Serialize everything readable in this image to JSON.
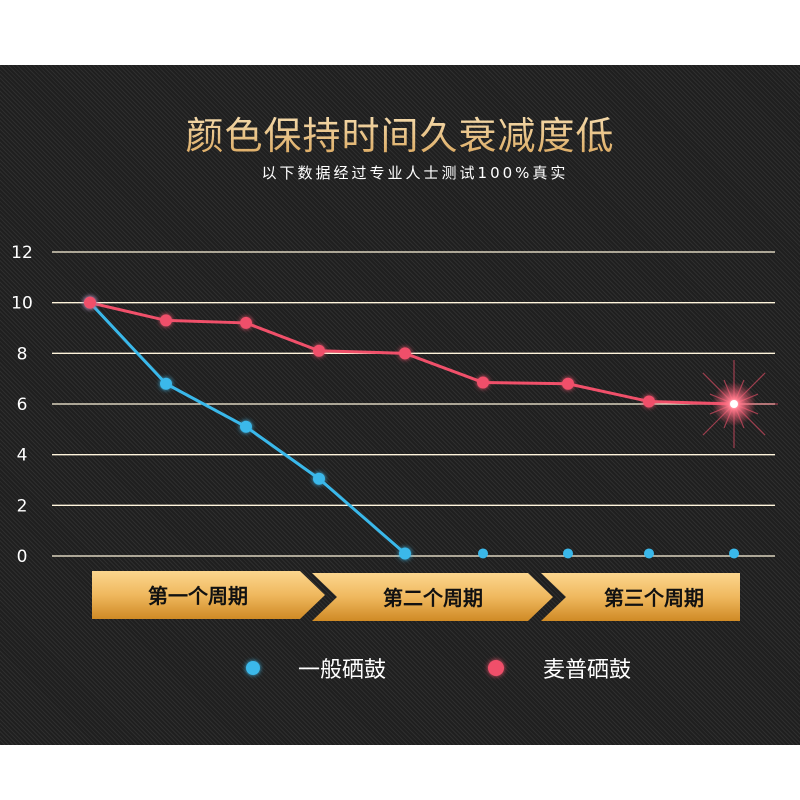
{
  "header": {
    "title": "颜色保持时间久衰减度低",
    "subtitle": "以下数据经过专业人士测试100%真实"
  },
  "periods": [
    "第一个周期",
    "第二个周期",
    "第三个周期"
  ],
  "colors": {
    "blue": "#3ab8ea",
    "red": "#f0506a",
    "grid": "#fff5dc",
    "gold_top": "#fcd68e",
    "gold_bottom": "#d08a25"
  },
  "chart_data": {
    "type": "line",
    "title": "",
    "xlabel": "",
    "ylabel": "",
    "ylim": [
      0,
      12
    ],
    "yticks": [
      0,
      2,
      4,
      6,
      8,
      10,
      12
    ],
    "grid": true,
    "legend_placement": "bottom",
    "x": [
      1,
      2,
      3,
      4,
      5,
      6,
      7,
      8,
      9
    ],
    "series": [
      {
        "name": "一般硒鼓",
        "color": "#3ab8ea",
        "values": [
          10,
          6.8,
          5.1,
          3.05,
          0.1,
          0.1,
          0.1,
          0.1,
          0.1
        ],
        "line_until_index": 4
      },
      {
        "name": "麦普硒鼓",
        "color": "#f0506a",
        "values": [
          10,
          9.3,
          9.2,
          8.1,
          8.0,
          6.85,
          6.8,
          6.1,
          6.0
        ]
      }
    ]
  }
}
